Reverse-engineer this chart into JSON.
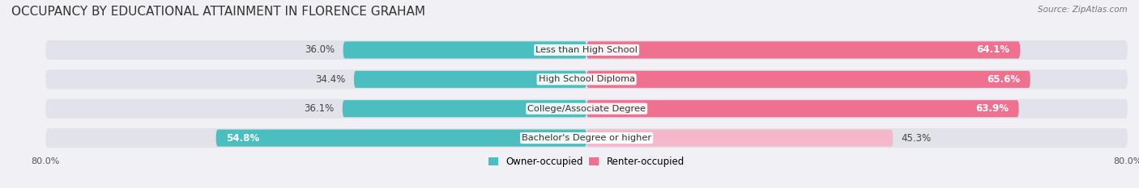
{
  "title": "OCCUPANCY BY EDUCATIONAL ATTAINMENT IN FLORENCE GRAHAM",
  "source": "Source: ZipAtlas.com",
  "categories": [
    "Less than High School",
    "High School Diploma",
    "College/Associate Degree",
    "Bachelor's Degree or higher"
  ],
  "owner_pct": [
    36.0,
    34.4,
    36.1,
    54.8
  ],
  "renter_pct": [
    64.1,
    65.6,
    63.9,
    45.3
  ],
  "owner_color": "#4bbfbf",
  "renter_color": "#f07090",
  "renter_color_last": "#f5b8cb",
  "bg_color": "#f0f0f5",
  "bar_bg_color": "#e2e2ea",
  "axis_min": -80.0,
  "axis_max": 80.0,
  "title_fontsize": 11,
  "label_fontsize": 8.5,
  "bar_height": 0.58
}
